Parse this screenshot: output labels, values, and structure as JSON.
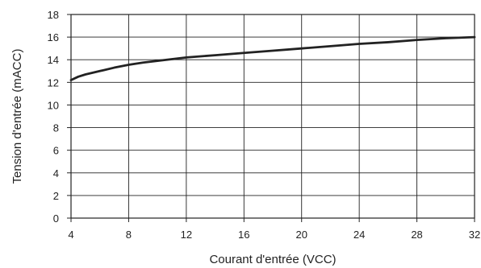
{
  "colors": {
    "background": "#ffffff",
    "grid": "#222222",
    "frame": "#222222",
    "curve": "#222222",
    "text": "#222222"
  },
  "chart_data": {
    "type": "line",
    "title": "",
    "xlabel": "Courant d'entrée (VCC)",
    "ylabel": "Tension d'entrée (mACC)",
    "xlim": [
      4,
      32
    ],
    "ylim": [
      0,
      18
    ],
    "x_ticks": [
      4,
      8,
      12,
      16,
      20,
      24,
      28,
      32
    ],
    "y_ticks": [
      0,
      2,
      4,
      6,
      8,
      10,
      12,
      14,
      16,
      18
    ],
    "grid": true,
    "legend": "none",
    "series": [
      {
        "x": [
          4,
          4.5,
          5,
          6,
          7,
          8,
          9,
          10,
          11,
          12,
          14,
          16,
          18,
          20,
          22,
          24,
          26,
          28,
          30,
          32
        ],
        "y": [
          12.2,
          12.5,
          12.7,
          13.0,
          13.3,
          13.55,
          13.75,
          13.9,
          14.05,
          14.2,
          14.4,
          14.6,
          14.8,
          15.0,
          15.2,
          15.4,
          15.55,
          15.75,
          15.9,
          16.0
        ]
      }
    ]
  }
}
